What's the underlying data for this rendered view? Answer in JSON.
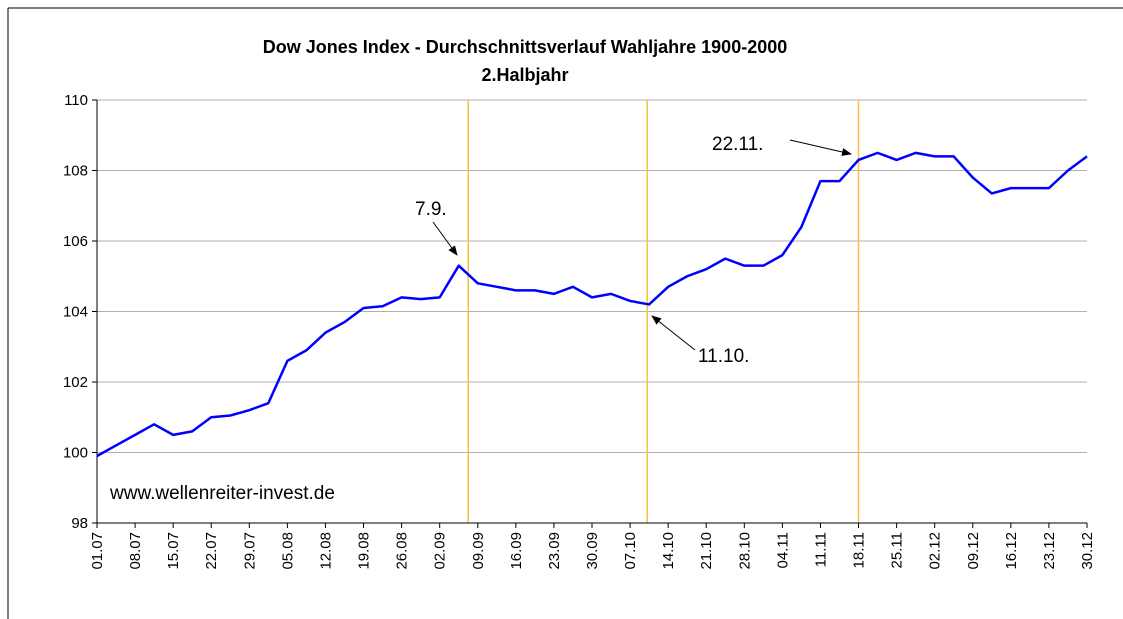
{
  "chart_data": {
    "type": "line",
    "title": "Dow Jones Index - Durchschnittsverlauf Wahljahre 1900-2000",
    "subtitle": "2.Halbjahr",
    "categories": [
      "01.07",
      null,
      "08.07",
      null,
      "15.07",
      null,
      "22.07",
      null,
      "29.07",
      null,
      "05.08",
      null,
      "12.08",
      null,
      "19.08",
      null,
      "26.08",
      null,
      "02.09",
      null,
      "09.09",
      null,
      "16.09",
      null,
      "23.09",
      null,
      "30.09",
      null,
      "07.10",
      null,
      "14.10",
      null,
      "21.10",
      null,
      "28.10",
      null,
      "04.11",
      null,
      "11.11",
      null,
      "18.11",
      null,
      "25.11",
      null,
      "02.12",
      null,
      "09.12",
      null,
      "16.12",
      null,
      "23.12",
      null,
      "30.12"
    ],
    "series": [
      {
        "name": "Dow Jones Index",
        "color": "#0000ff",
        "values": [
          99.9,
          100.2,
          100.5,
          100.8,
          100.5,
          100.6,
          101.0,
          101.05,
          101.2,
          101.4,
          102.6,
          102.9,
          103.4,
          103.7,
          104.1,
          104.15,
          104.4,
          104.35,
          104.4,
          105.3,
          104.8,
          104.7,
          104.6,
          104.6,
          104.5,
          104.7,
          104.4,
          104.5,
          104.3,
          104.2,
          104.7,
          105.0,
          105.2,
          105.5,
          105.3,
          105.3,
          105.6,
          106.4,
          107.7,
          107.7,
          108.3,
          108.5,
          108.3,
          108.5,
          108.4,
          108.4,
          107.8,
          107.35,
          107.5,
          107.5,
          107.5,
          108.0,
          108.4
        ]
      }
    ],
    "ylim": [
      98,
      110
    ],
    "yticks": [
      98,
      100,
      102,
      104,
      106,
      108,
      110
    ],
    "grid": true,
    "annotations": [
      {
        "text": "7.9."
      },
      {
        "text": "11.10."
      },
      {
        "text": "22.11."
      },
      {
        "text": "www.wellenreiter-invest.de"
      }
    ]
  }
}
